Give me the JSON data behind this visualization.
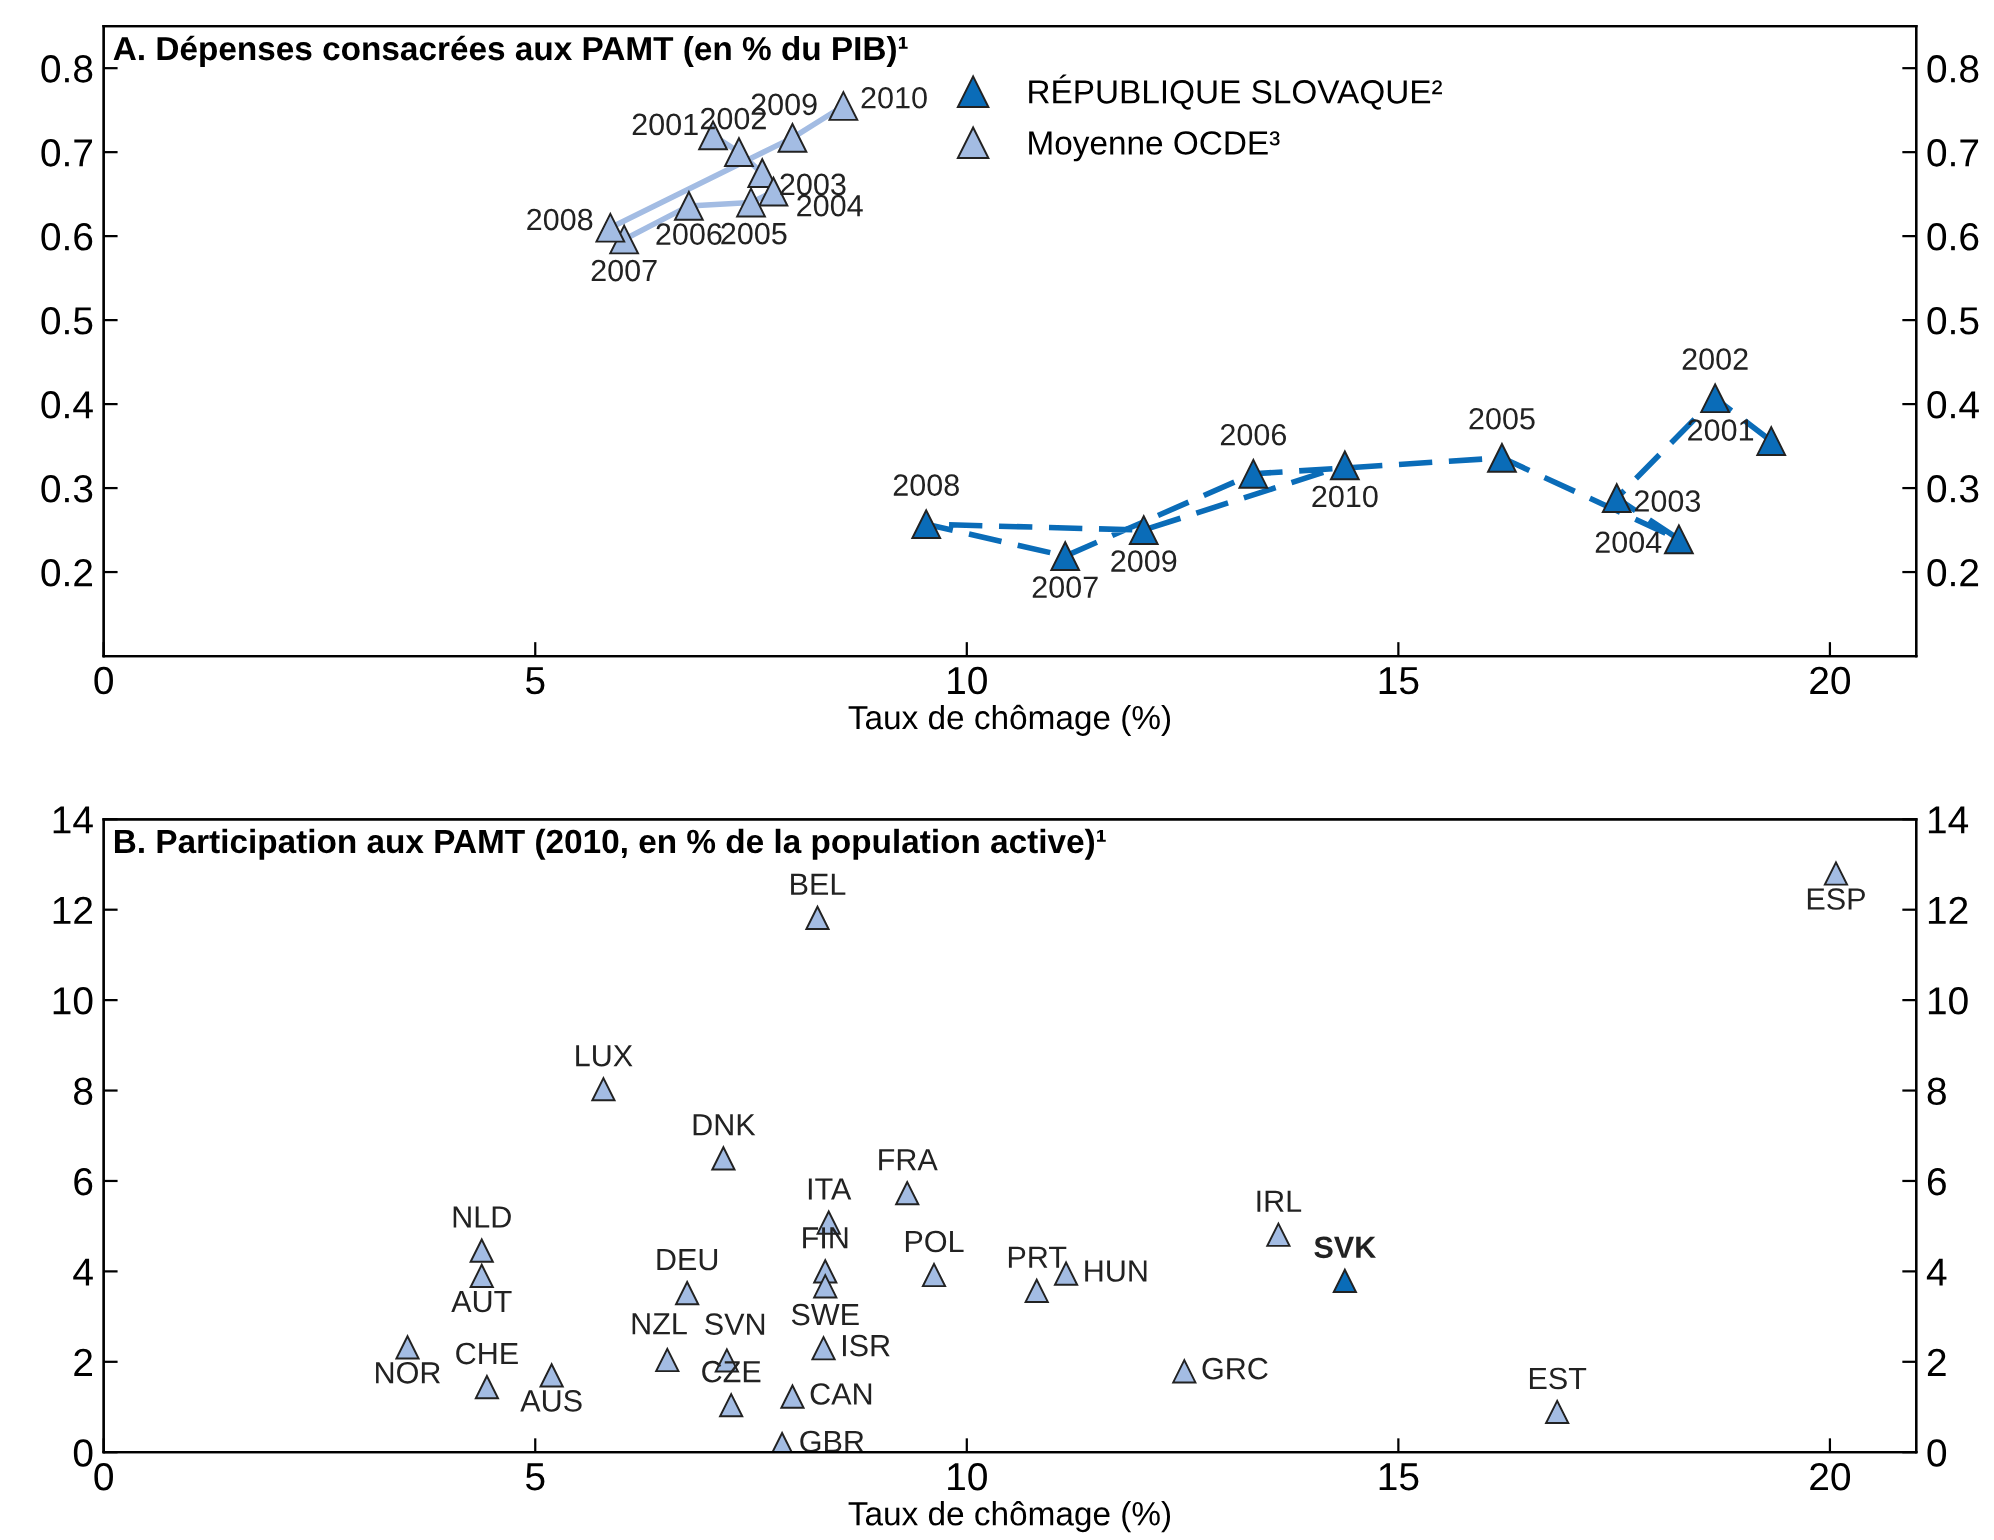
{
  "chart_data": [
    {
      "type": "line",
      "title": "A. Dépenses consacrées aux PAMT (en % du PIB)¹",
      "xlabel": "Taux de chômage (%)",
      "xlim": [
        0,
        21
      ],
      "xticks": [
        0,
        5,
        10,
        15,
        20
      ],
      "ylim": [
        0.1,
        0.85
      ],
      "yticks": [
        0.2,
        0.3,
        0.4,
        0.5,
        0.6,
        0.7,
        0.8
      ],
      "y2lim": [
        0.1,
        0.85
      ],
      "y2ticks": [
        0.2,
        0.3,
        0.4,
        0.5,
        0.6,
        0.7,
        0.8
      ],
      "grid": false,
      "legend": "top",
      "marker": "triangle",
      "series": [
        {
          "name": "RÉPUBLIQUE SLOVAQUE²",
          "color": "#0a6cb8",
          "line_style": "dashed",
          "x": [
            19.32,
            18.67,
            17.53,
            18.25,
            16.2,
            13.32,
            11.14,
            9.53,
            12.05,
            14.38
          ],
          "values": [
            0.356,
            0.407,
            0.288,
            0.239,
            0.336,
            0.317,
            0.219,
            0.257,
            0.25,
            0.327
          ]
        },
        {
          "name": "Moyenne OCDE³",
          "color": "#a3bce3",
          "line_style": "solid",
          "x": [
            7.06,
            7.36,
            7.63,
            7.76,
            7.5,
            6.78,
            6.03,
            5.87,
            7.98,
            8.57
          ],
          "values": [
            0.72,
            0.7,
            0.675,
            0.653,
            0.64,
            0.636,
            0.596,
            0.61,
            0.717,
            0.755
          ]
        }
      ],
      "annotations": [
        {
          "text": "2001",
          "x": 19.32,
          "y": 0.356
        },
        {
          "text": "2002",
          "x": 18.67,
          "y": 0.407
        },
        {
          "text": "2003",
          "x": 17.53,
          "y": 0.288
        },
        {
          "text": "2004",
          "x": 18.25,
          "y": 0.239
        },
        {
          "text": "2005",
          "x": 16.2,
          "y": 0.336
        },
        {
          "text": "2006",
          "x": 13.32,
          "y": 0.317
        },
        {
          "text": "2007",
          "x": 11.14,
          "y": 0.219
        },
        {
          "text": "2008",
          "x": 9.53,
          "y": 0.257
        },
        {
          "text": "2009",
          "x": 12.05,
          "y": 0.25
        },
        {
          "text": "2010",
          "x": 14.38,
          "y": 0.327
        },
        {
          "text": "2001",
          "x": 7.06,
          "y": 0.72
        },
        {
          "text": "2002",
          "x": 7.36,
          "y": 0.7
        },
        {
          "text": "2003",
          "x": 7.63,
          "y": 0.675
        },
        {
          "text": "2004",
          "x": 7.76,
          "y": 0.653
        },
        {
          "text": "2005",
          "x": 7.5,
          "y": 0.64
        },
        {
          "text": "2006",
          "x": 6.78,
          "y": 0.636
        },
        {
          "text": "2007",
          "x": 6.03,
          "y": 0.596
        },
        {
          "text": "2008",
          "x": 5.87,
          "y": 0.61
        },
        {
          "text": "2009",
          "x": 7.98,
          "y": 0.717
        },
        {
          "text": "2010",
          "x": 8.57,
          "y": 0.755
        }
      ]
    },
    {
      "type": "scatter",
      "title": "B. Participation aux PAMT (2010, en % de la population active)¹",
      "xlabel": "Taux de chômage (%)",
      "xlim": [
        0,
        21
      ],
      "xticks": [
        0,
        5,
        10,
        15,
        20
      ],
      "ylim": [
        0,
        14
      ],
      "yticks": [
        0,
        2,
        4,
        6,
        8,
        10,
        12,
        14
      ],
      "y2lim": [
        0,
        14
      ],
      "y2ticks": [
        0,
        2,
        4,
        6,
        8,
        10,
        12,
        14
      ],
      "grid": false,
      "marker": "triangle",
      "series": [
        {
          "color": "#0a6cb8",
          "x": [
            14.38
          ],
          "values": [
            3.79
          ]
        },
        {
          "color": "#a3bce3",
          "x": [
            3.52,
            4.44,
            5.19,
            4.38,
            4.38,
            5.79,
            7.18,
            6.76,
            6.53,
            7.22,
            7.27,
            8.27,
            8.4,
            8.36,
            8.36,
            8.34,
            7.98,
            7.86,
            9.31,
            9.62,
            10.81,
            11.15,
            12.52,
            13.61,
            16.84,
            20.07
          ],
          "values": [
            2.32,
            1.44,
            1.7,
            4.46,
            3.9,
            8.03,
            6.5,
            3.52,
            2.04,
            2.03,
            1.04,
            11.82,
            5.08,
            4.0,
            3.67,
            2.3,
            1.23,
            0.18,
            5.73,
            3.92,
            3.57,
            3.95,
            1.79,
            4.81,
            0.89,
            12.8
          ]
        }
      ],
      "annotations": [
        {
          "text": "SVK",
          "x": 14.38,
          "y": 3.79
        },
        {
          "text": "NOR",
          "x": 3.52,
          "y": 2.32
        },
        {
          "text": "CHE",
          "x": 4.44,
          "y": 1.44
        },
        {
          "text": "AUS",
          "x": 5.19,
          "y": 1.7
        },
        {
          "text": "NLD",
          "x": 4.38,
          "y": 4.46
        },
        {
          "text": "AUT",
          "x": 4.38,
          "y": 3.9
        },
        {
          "text": "LUX",
          "x": 5.79,
          "y": 8.03
        },
        {
          "text": "DNK",
          "x": 7.18,
          "y": 6.5
        },
        {
          "text": "DEU",
          "x": 6.76,
          "y": 3.52
        },
        {
          "text": "NZL",
          "x": 6.53,
          "y": 2.04
        },
        {
          "text": "SVN",
          "x": 7.22,
          "y": 2.03
        },
        {
          "text": "CZE",
          "x": 7.27,
          "y": 1.04
        },
        {
          "text": "BEL",
          "x": 8.27,
          "y": 11.82
        },
        {
          "text": "ITA",
          "x": 8.4,
          "y": 5.08
        },
        {
          "text": "FIN",
          "x": 8.36,
          "y": 4.0
        },
        {
          "text": "SWE",
          "x": 8.36,
          "y": 3.67
        },
        {
          "text": "ISR",
          "x": 8.34,
          "y": 2.3
        },
        {
          "text": "CAN",
          "x": 7.98,
          "y": 1.23
        },
        {
          "text": "GBR",
          "x": 7.86,
          "y": 0.18
        },
        {
          "text": "FRA",
          "x": 9.31,
          "y": 5.73
        },
        {
          "text": "POL",
          "x": 9.62,
          "y": 3.92
        },
        {
          "text": "PRT",
          "x": 10.81,
          "y": 3.57
        },
        {
          "text": "HUN",
          "x": 11.15,
          "y": 3.95
        },
        {
          "text": "GRC",
          "x": 12.52,
          "y": 1.79
        },
        {
          "text": "IRL",
          "x": 13.61,
          "y": 4.81
        },
        {
          "text": "EST",
          "x": 16.84,
          "y": 0.89
        },
        {
          "text": "ESP",
          "x": 20.07,
          "y": 12.8
        }
      ]
    }
  ]
}
